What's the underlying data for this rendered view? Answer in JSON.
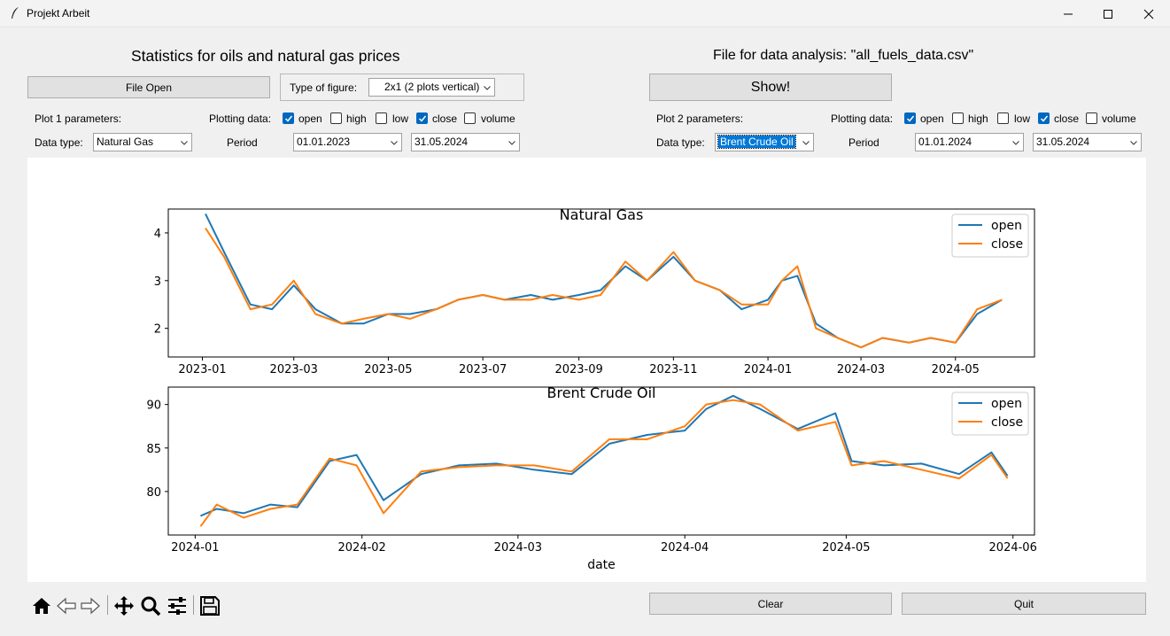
{
  "window": {
    "title": "Projekt Arbeit"
  },
  "left": {
    "heading": "Statistics for oils and natural gas prices",
    "file_open_label": "File Open",
    "figure_type_label": "Type of figure:",
    "figure_type_value": "2x1 (2 plots vertical)",
    "plot_params_label": "Plot 1 parameters:",
    "plotting_data_label": "Plotting data:",
    "checks": [
      {
        "label": "open",
        "checked": true
      },
      {
        "label": "high",
        "checked": false
      },
      {
        "label": "low",
        "checked": false
      },
      {
        "label": "close",
        "checked": true
      },
      {
        "label": "volume",
        "checked": false
      }
    ],
    "data_type_label": "Data type:",
    "data_type_value": "Natural Gas",
    "period_label": "Period",
    "period_start": "01.01.2023",
    "period_end": "31.05.2024"
  },
  "right": {
    "heading": "File for data analysis: \"all_fuels_data.csv\"",
    "show_label": "Show!",
    "plot_params_label": "Plot 2 parameters:",
    "plotting_data_label": "Plotting data:",
    "checks": [
      {
        "label": "open",
        "checked": true
      },
      {
        "label": "high",
        "checked": false
      },
      {
        "label": "low",
        "checked": false
      },
      {
        "label": "close",
        "checked": true
      },
      {
        "label": "volume",
        "checked": false
      }
    ],
    "data_type_label": "Data type:",
    "data_type_value": "Brent Crude Oil",
    "period_label": "Period",
    "period_start": "01.01.2024",
    "period_end": "31.05.2024"
  },
  "bottom": {
    "clear_label": "Clear",
    "quit_label": "Quit"
  },
  "toolbar_icons": [
    "home-icon",
    "back-arrow-icon",
    "forward-arrow-icon",
    "pan-icon",
    "zoom-icon",
    "configure-subplots-icon",
    "save-icon"
  ],
  "colors": {
    "open": "#1f77b4",
    "close": "#ff7f0e",
    "selection": "#0078d7"
  },
  "chart_data": [
    {
      "type": "line",
      "title": "Natural Gas",
      "x_ticks": [
        "2023-01",
        "2023-03",
        "2023-05",
        "2023-07",
        "2023-09",
        "2023-11",
        "2024-01",
        "2024-03",
        "2024-05"
      ],
      "y_ticks": [
        "2",
        "3",
        "4"
      ],
      "ylim": [
        1.4,
        4.5
      ],
      "xlabel": "",
      "legend": "upper-right",
      "x": [
        "2023-01-03",
        "2023-01-15",
        "2023-02-01",
        "2023-02-15",
        "2023-03-01",
        "2023-03-15",
        "2023-04-01",
        "2023-04-15",
        "2023-05-01",
        "2023-05-15",
        "2023-06-01",
        "2023-06-15",
        "2023-07-01",
        "2023-07-15",
        "2023-08-01",
        "2023-08-15",
        "2023-09-01",
        "2023-09-15",
        "2023-10-01",
        "2023-10-15",
        "2023-11-01",
        "2023-11-15",
        "2023-12-01",
        "2023-12-15",
        "2024-01-01",
        "2024-01-10",
        "2024-01-20",
        "2024-02-01",
        "2024-02-15",
        "2024-03-01",
        "2024-03-15",
        "2024-04-01",
        "2024-04-15",
        "2024-05-01",
        "2024-05-15",
        "2024-05-31"
      ],
      "series": [
        {
          "name": "open",
          "values": [
            4.4,
            3.6,
            2.5,
            2.4,
            2.9,
            2.4,
            2.1,
            2.1,
            2.3,
            2.3,
            2.4,
            2.6,
            2.7,
            2.6,
            2.7,
            2.6,
            2.7,
            2.8,
            3.3,
            3.0,
            3.5,
            3.0,
            2.8,
            2.4,
            2.6,
            3.0,
            3.1,
            2.1,
            1.8,
            1.6,
            1.8,
            1.7,
            1.8,
            1.7,
            2.3,
            2.6
          ]
        },
        {
          "name": "close",
          "values": [
            4.1,
            3.5,
            2.4,
            2.5,
            3.0,
            2.3,
            2.1,
            2.2,
            2.3,
            2.2,
            2.4,
            2.6,
            2.7,
            2.6,
            2.6,
            2.7,
            2.6,
            2.7,
            3.4,
            3.0,
            3.6,
            3.0,
            2.8,
            2.5,
            2.5,
            3.0,
            3.3,
            2.0,
            1.8,
            1.6,
            1.8,
            1.7,
            1.8,
            1.7,
            2.4,
            2.6
          ]
        }
      ]
    },
    {
      "type": "line",
      "title": "Brent Crude Oil",
      "x_ticks": [
        "2024-01",
        "2024-02",
        "2024-03",
        "2024-04",
        "2024-05",
        "2024-06"
      ],
      "y_ticks": [
        "80",
        "85",
        "90"
      ],
      "ylim": [
        75,
        92
      ],
      "xlabel": "date",
      "legend": "upper-right",
      "x": [
        "2024-01-02",
        "2024-01-05",
        "2024-01-10",
        "2024-01-15",
        "2024-01-20",
        "2024-01-26",
        "2024-01-31",
        "2024-02-05",
        "2024-02-12",
        "2024-02-19",
        "2024-02-26",
        "2024-03-04",
        "2024-03-11",
        "2024-03-18",
        "2024-03-25",
        "2024-04-01",
        "2024-04-05",
        "2024-04-10",
        "2024-04-15",
        "2024-04-22",
        "2024-04-29",
        "2024-05-02",
        "2024-05-08",
        "2024-05-15",
        "2024-05-22",
        "2024-05-28",
        "2024-05-31"
      ],
      "series": [
        {
          "name": "open",
          "values": [
            77.2,
            78.0,
            77.5,
            78.5,
            78.2,
            83.5,
            84.2,
            79.0,
            82.0,
            83.0,
            83.2,
            82.5,
            82.0,
            85.5,
            86.5,
            87.0,
            89.5,
            91.0,
            89.5,
            87.2,
            89.0,
            83.5,
            83.0,
            83.2,
            82.0,
            84.5,
            81.8
          ]
        },
        {
          "name": "close",
          "values": [
            76.0,
            78.5,
            77.0,
            78.0,
            78.5,
            83.8,
            83.0,
            77.5,
            82.3,
            82.8,
            83.0,
            83.0,
            82.3,
            86.0,
            86.0,
            87.5,
            90.0,
            90.5,
            90.0,
            87.0,
            88.0,
            83.0,
            83.5,
            82.5,
            81.5,
            84.2,
            81.5
          ]
        }
      ]
    }
  ]
}
